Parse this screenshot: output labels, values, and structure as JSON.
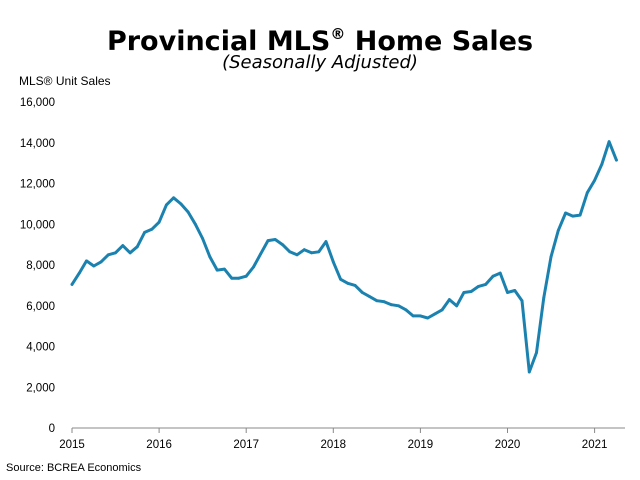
{
  "header": {
    "title": "Provincial MLS",
    "title_mark": "®",
    "title_suffix": " Home Sales",
    "subtitle": "(Seasonally Adjusted)"
  },
  "footer": {
    "source": "Source: BCREA Economics"
  },
  "chart_data": {
    "type": "line",
    "title": "Provincial MLS® Home Sales",
    "subtitle": "(Seasonally Adjusted)",
    "ylabel": "MLS® Unit Sales",
    "xlabel": "",
    "ylim": [
      0,
      16000
    ],
    "y_ticks": [
      0,
      2000,
      4000,
      6000,
      8000,
      10000,
      12000,
      14000,
      16000
    ],
    "y_tick_labels": [
      "0",
      "2,000",
      "4,000",
      "6,000",
      "8,000",
      "10,000",
      "12,000",
      "14,000",
      "16,000"
    ],
    "x_start": "2015-01",
    "x_ticks": [
      "2015",
      "2016",
      "2017",
      "2018",
      "2019",
      "2020",
      "2021"
    ],
    "grid": false,
    "line_color": "#1b82b0",
    "series": [
      {
        "values": [
          7050,
          7600,
          8200,
          7950,
          8150,
          8500,
          8600,
          8950,
          8600,
          8900,
          9600,
          9750,
          10100,
          10950,
          11300,
          11000,
          10600,
          10000,
          9300,
          8400,
          7750,
          7800,
          7350,
          7350,
          7450,
          7900,
          8550,
          9200,
          9250,
          9000,
          8650,
          8500,
          8750,
          8600,
          8650,
          9150,
          8150,
          7300,
          7100,
          7000,
          6650,
          6450,
          6250,
          6200,
          6050,
          6000,
          5800,
          5500,
          5500,
          5400,
          5600,
          5800,
          6300,
          6000,
          6650,
          6700,
          6950,
          7050,
          7450,
          7600,
          6650,
          6750,
          6250,
          2750,
          3700,
          6400,
          8400,
          9700,
          10550,
          10400,
          10450,
          11550,
          12150,
          12950,
          14050,
          13150
        ]
      }
    ]
  }
}
